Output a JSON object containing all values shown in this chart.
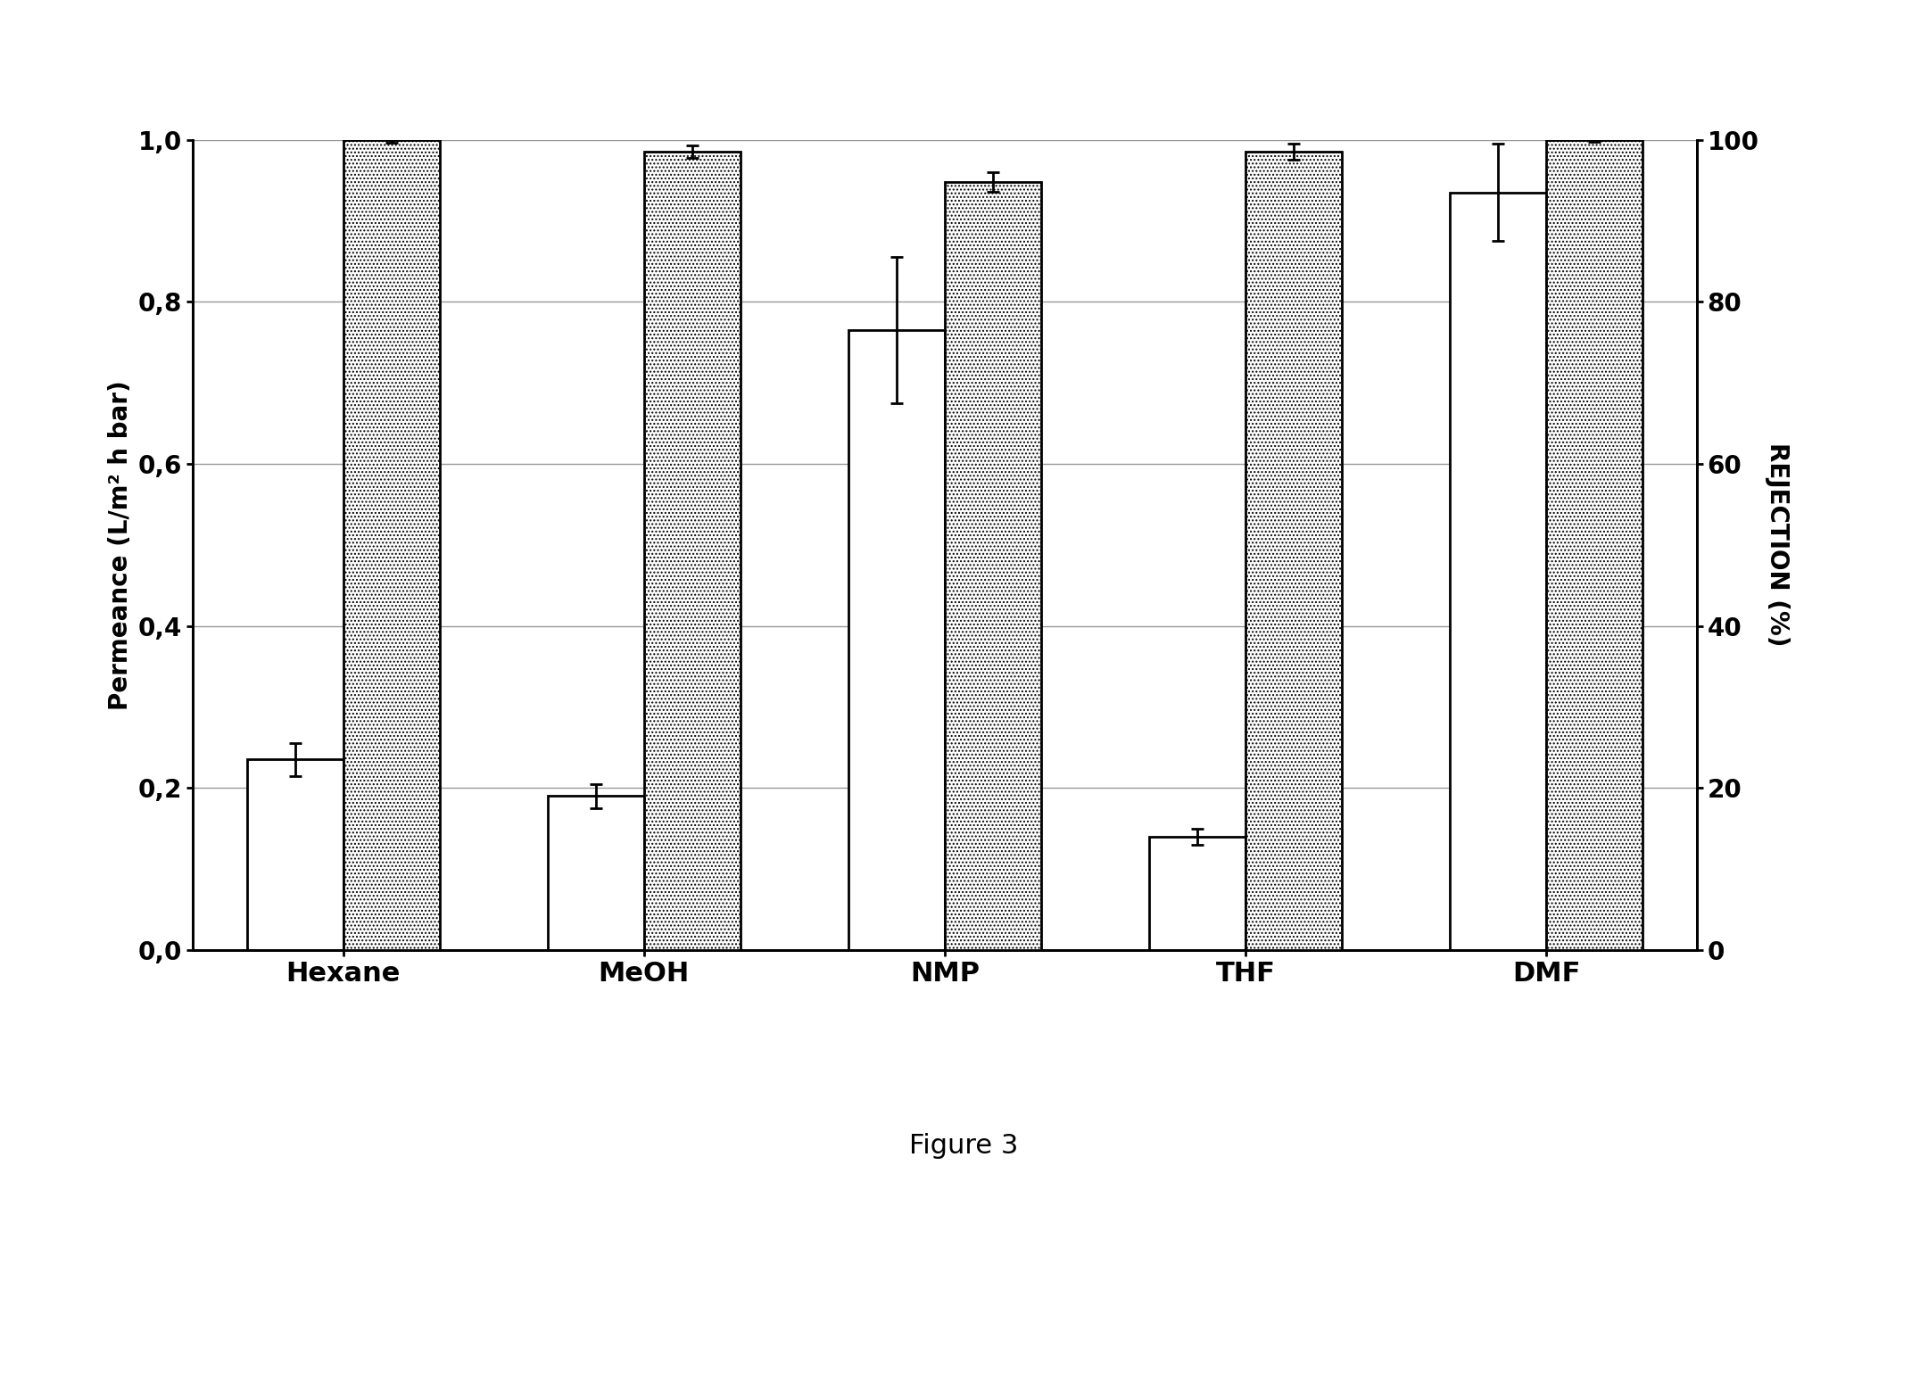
{
  "categories": [
    "Hexane",
    "MeOH",
    "NMP",
    "THF",
    "DMF"
  ],
  "permeance_values": [
    0.235,
    0.19,
    0.765,
    0.14,
    0.935
  ],
  "permeance_errors": [
    0.02,
    0.015,
    0.09,
    0.01,
    0.06
  ],
  "rejection_values": [
    100.0,
    98.5,
    94.8,
    98.5,
    100.0
  ],
  "rejection_errors": [
    0.4,
    0.8,
    1.2,
    1.0,
    0.3
  ],
  "left_ylabel": "Permeance (L/m² h bar)",
  "right_ylabel": "REJECTION (%)",
  "figure_caption": "Figure 3",
  "ylim_left": [
    0.0,
    1.0
  ],
  "ylim_right": [
    0,
    100
  ],
  "yticks_left": [
    0.0,
    0.2,
    0.4,
    0.6,
    0.8,
    1.0
  ],
  "ytick_labels_left": [
    "0,0",
    "0,2",
    "0,4",
    "0,6",
    "0,8",
    "1,0"
  ],
  "yticks_right": [
    0,
    20,
    40,
    60,
    80,
    100
  ],
  "bar_width": 0.32,
  "permeance_color": "white",
  "permeance_edgecolor": "black",
  "rejection_hatch": "....",
  "rejection_facecolor": "white",
  "rejection_edgecolor": "black",
  "background_color": "white",
  "grid_color": "#999999",
  "axis_fontsize": 20,
  "tick_fontsize": 20,
  "xtick_fontsize": 22,
  "caption_fontsize": 22,
  "ylabel_fontsize": 20
}
